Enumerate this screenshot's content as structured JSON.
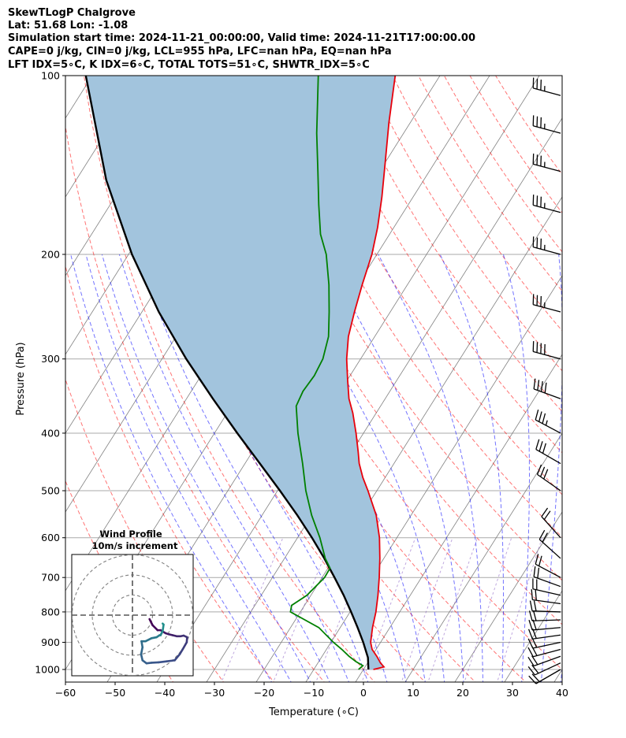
{
  "header": {
    "line1": "SkewTLogP Chalgrove",
    "line2": "Lat: 51.68   Lon: -1.08",
    "line3": "Simulation start time: 2024-11-21_00:00:00, Valid time: 2024-11-21T17:00:00.00",
    "line4": "CAPE=0 j/kg, CIN=0 j/kg, LCL=955 hPa, LFC=nan hPa, EQ=nan hPa",
    "line5": "LFT IDX=5∘C, K IDX=6∘C, TOTAL TOTS=51∘C, SHWTR_IDX=5∘C"
  },
  "chart_data": {
    "type": "skew-t",
    "xlabel": "Temperature (∘C)",
    "ylabel": "Pressure (hPa)",
    "xlim": [
      -60,
      40
    ],
    "ylim": [
      1050,
      100
    ],
    "x_ticks": [
      "−60",
      "−50",
      "−40",
      "−30",
      "−20",
      "−10",
      "0",
      "10",
      "20",
      "30",
      "40"
    ],
    "x_tick_values": [
      -60,
      -50,
      -40,
      -30,
      -20,
      -10,
      0,
      10,
      20,
      30,
      40
    ],
    "y_ticks": [
      "1000",
      "900",
      "800",
      "700",
      "600",
      "500",
      "400",
      "300",
      "200",
      "100"
    ],
    "y_tick_values": [
      1000,
      900,
      800,
      700,
      600,
      500,
      400,
      300,
      200,
      100
    ],
    "grid": true,
    "temperature_profile": {
      "color": "#e8000b",
      "points": [
        [
          1000,
          2.0
        ],
        [
          990,
          3.8
        ],
        [
          975,
          2.6
        ],
        [
          950,
          1.0
        ],
        [
          925,
          -0.8
        ],
        [
          900,
          -2.0
        ],
        [
          850,
          -3.5
        ],
        [
          800,
          -4.8
        ],
        [
          750,
          -6.5
        ],
        [
          700,
          -8.5
        ],
        [
          650,
          -10.8
        ],
        [
          600,
          -13.5
        ],
        [
          550,
          -17.0
        ],
        [
          500,
          -21.8
        ],
        [
          475,
          -24.5
        ],
        [
          450,
          -27.0
        ],
        [
          430,
          -28.7
        ],
        [
          400,
          -31.5
        ],
        [
          370,
          -34.7
        ],
        [
          350,
          -37.3
        ],
        [
          325,
          -40.0
        ],
        [
          300,
          -42.8
        ],
        [
          275,
          -45.3
        ],
        [
          250,
          -47.2
        ],
        [
          225,
          -49.1
        ],
        [
          200,
          -51.0
        ],
        [
          180,
          -53.3
        ],
        [
          160,
          -56.3
        ],
        [
          140,
          -60.0
        ],
        [
          120,
          -64.3
        ],
        [
          100,
          -69.0
        ]
      ]
    },
    "dewpoint_profile": {
      "color": "#008000",
      "points": [
        [
          1000,
          -1.0
        ],
        [
          985,
          -0.6
        ],
        [
          970,
          -2.5
        ],
        [
          950,
          -4.6
        ],
        [
          925,
          -6.9
        ],
        [
          900,
          -9.5
        ],
        [
          850,
          -14.3
        ],
        [
          800,
          -22.0
        ],
        [
          780,
          -22.6
        ],
        [
          750,
          -20.8
        ],
        [
          700,
          -19.5
        ],
        [
          675,
          -19.6
        ],
        [
          650,
          -21.8
        ],
        [
          600,
          -25.5
        ],
        [
          550,
          -30.0
        ],
        [
          500,
          -34.3
        ],
        [
          450,
          -38.4
        ],
        [
          400,
          -43.2
        ],
        [
          360,
          -47.0
        ],
        [
          340,
          -47.5
        ],
        [
          320,
          -47.2
        ],
        [
          300,
          -47.6
        ],
        [
          275,
          -49.3
        ],
        [
          250,
          -52.3
        ],
        [
          225,
          -55.8
        ],
        [
          200,
          -60.2
        ],
        [
          185,
          -63.9
        ],
        [
          165,
          -68.0
        ],
        [
          145,
          -72.4
        ],
        [
          125,
          -77.5
        ],
        [
          100,
          -84.5
        ]
      ]
    },
    "parcel_profile": {
      "color": "#000000",
      "points": [
        [
          1000,
          1.0
        ],
        [
          955,
          -0.6
        ],
        [
          900,
          -3.5
        ],
        [
          850,
          -6.5
        ],
        [
          800,
          -9.8
        ],
        [
          750,
          -13.4
        ],
        [
          700,
          -17.5
        ],
        [
          650,
          -22.0
        ],
        [
          600,
          -27.1
        ],
        [
          550,
          -32.9
        ],
        [
          500,
          -39.5
        ],
        [
          450,
          -47.0
        ],
        [
          400,
          -55.4
        ],
        [
          350,
          -64.7
        ],
        [
          300,
          -75.1
        ],
        [
          250,
          -86.6
        ],
        [
          200,
          -99.3
        ],
        [
          150,
          -113.9
        ],
        [
          100,
          -131.3
        ]
      ]
    },
    "wind_barbs": [
      {
        "pressure": 1000,
        "speed_kt": 20,
        "direction_deg": 240
      },
      {
        "pressure": 975,
        "speed_kt": 22,
        "direction_deg": 245
      },
      {
        "pressure": 950,
        "speed_kt": 22,
        "direction_deg": 250
      },
      {
        "pressure": 925,
        "speed_kt": 22,
        "direction_deg": 255
      },
      {
        "pressure": 900,
        "speed_kt": 22,
        "direction_deg": 258
      },
      {
        "pressure": 875,
        "speed_kt": 22,
        "direction_deg": 262
      },
      {
        "pressure": 850,
        "speed_kt": 22,
        "direction_deg": 265
      },
      {
        "pressure": 825,
        "speed_kt": 22,
        "direction_deg": 268
      },
      {
        "pressure": 800,
        "speed_kt": 22,
        "direction_deg": 272
      },
      {
        "pressure": 775,
        "speed_kt": 20,
        "direction_deg": 278
      },
      {
        "pressure": 750,
        "speed_kt": 20,
        "direction_deg": 283
      },
      {
        "pressure": 725,
        "speed_kt": 20,
        "direction_deg": 290
      },
      {
        "pressure": 700,
        "speed_kt": 18,
        "direction_deg": 298
      },
      {
        "pressure": 650,
        "speed_kt": 20,
        "direction_deg": 312
      },
      {
        "pressure": 600,
        "speed_kt": 22,
        "direction_deg": 318
      },
      {
        "pressure": 500,
        "speed_kt": 30,
        "direction_deg": 305
      },
      {
        "pressure": 450,
        "speed_kt": 32,
        "direction_deg": 300
      },
      {
        "pressure": 400,
        "speed_kt": 35,
        "direction_deg": 298
      },
      {
        "pressure": 350,
        "speed_kt": 38,
        "direction_deg": 290
      },
      {
        "pressure": 300,
        "speed_kt": 40,
        "direction_deg": 285
      },
      {
        "pressure": 250,
        "speed_kt": 35,
        "direction_deg": 285
      },
      {
        "pressure": 200,
        "speed_kt": 35,
        "direction_deg": 285
      },
      {
        "pressure": 170,
        "speed_kt": 35,
        "direction_deg": 285
      },
      {
        "pressure": 145,
        "speed_kt": 35,
        "direction_deg": 285
      },
      {
        "pressure": 125,
        "speed_kt": 35,
        "direction_deg": 285
      },
      {
        "pressure": 108,
        "speed_kt": 35,
        "direction_deg": 285
      }
    ],
    "background_lines": {
      "dry_adiabat_color": "#ff0000",
      "moist_adiabat_color": "#0000ff",
      "mixing_ratio_color": "#0000ff",
      "isotherm_color": "#808080",
      "isobar_color": "#a9a9a9",
      "cape_fill_color": "#a2c4dd"
    },
    "inset": {
      "title_line1": "Wind Profile",
      "title_line2": "10m/s increment",
      "ring_speeds_ms": [
        10,
        20,
        30
      ],
      "hodograph_points_ms": [
        [
          8.5,
          -2.0
        ],
        [
          10.0,
          -5.0
        ],
        [
          12.5,
          -7.5
        ],
        [
          14.0,
          -7.5
        ],
        [
          16.5,
          -9.0
        ],
        [
          18.0,
          -9.5
        ],
        [
          20.0,
          -10.0
        ],
        [
          22.0,
          -10.5
        ],
        [
          24.0,
          -10.5
        ],
        [
          25.5,
          -10.2
        ],
        [
          27.2,
          -11.0
        ],
        [
          27.0,
          -13.5
        ],
        [
          25.0,
          -17.0
        ],
        [
          23.5,
          -19.5
        ],
        [
          21.0,
          -22.5
        ],
        [
          17.0,
          -23.0
        ],
        [
          13.0,
          -23.5
        ],
        [
          9.5,
          -23.7
        ],
        [
          7.0,
          -24.0
        ],
        [
          5.0,
          -22.5
        ],
        [
          4.3,
          -19.5
        ],
        [
          5.0,
          -16.0
        ],
        [
          4.5,
          -13.0
        ],
        [
          6.5,
          -13.0
        ],
        [
          9.5,
          -11.5
        ],
        [
          12.0,
          -11.0
        ],
        [
          13.5,
          -10.0
        ],
        [
          14.0,
          -10.0
        ],
        [
          14.5,
          -9.0
        ],
        [
          15.0,
          -8.0
        ],
        [
          15.5,
          -4.7
        ],
        [
          15.0,
          -4.2
        ]
      ]
    }
  }
}
